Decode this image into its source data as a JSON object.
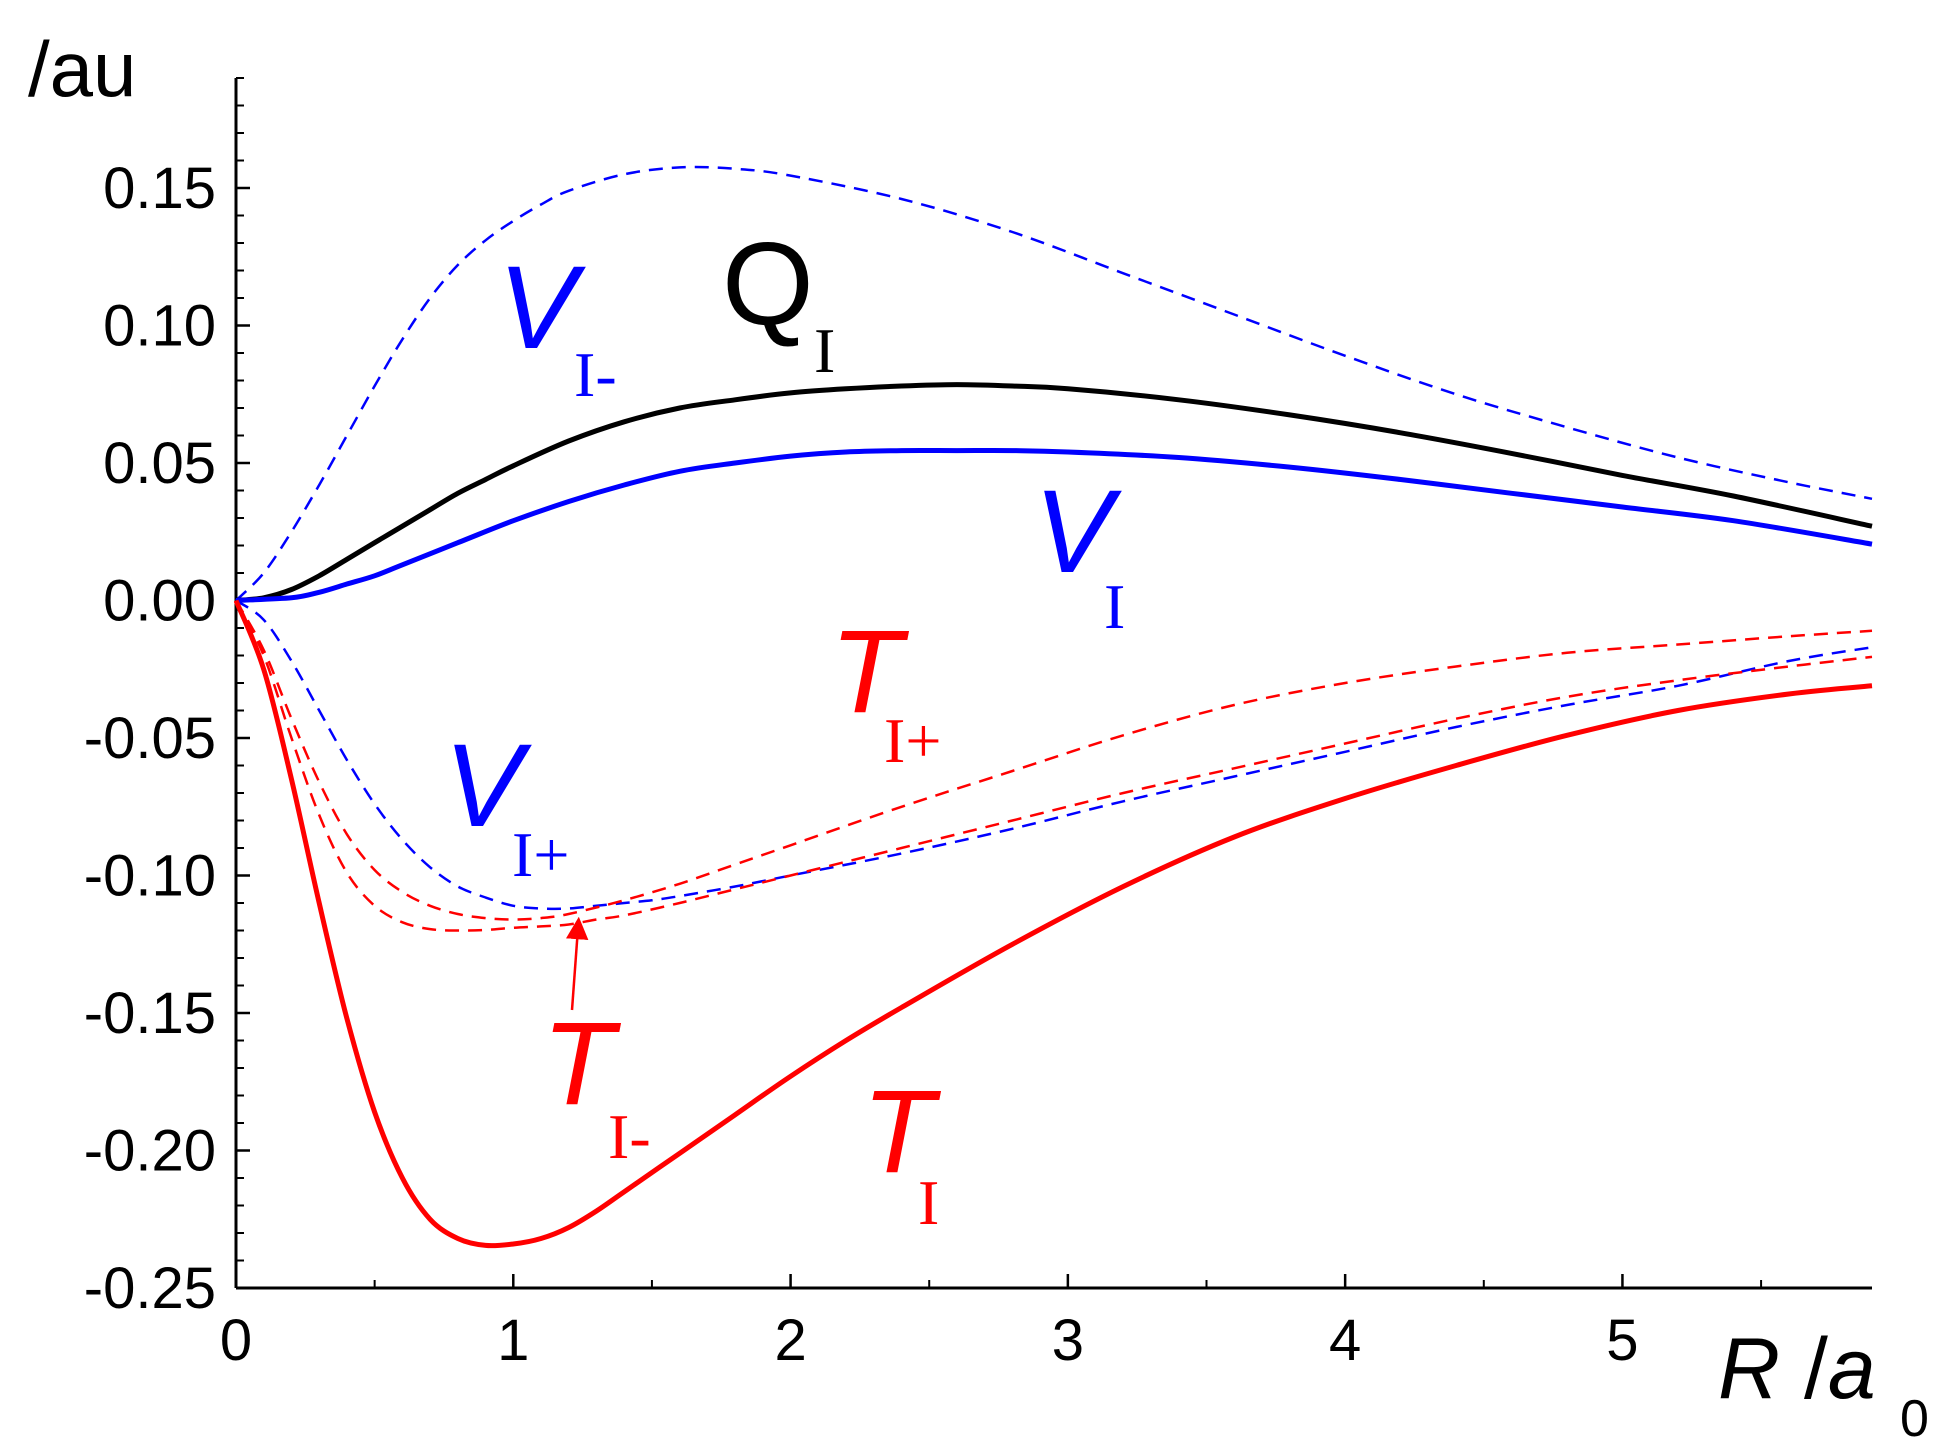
{
  "chart_data": {
    "type": "line",
    "ylabel": "/au",
    "xlabel_main": "R",
    "xlabel_sep": " /",
    "xlabel_var": "a",
    "xlabel_sub": "0",
    "xlim": [
      0,
      5.9
    ],
    "ylim": [
      -0.25,
      0.19
    ],
    "x_ticks": [
      0,
      1,
      2,
      3,
      4,
      5
    ],
    "x_tick_labels": [
      "0",
      "1",
      "2",
      "3",
      "4",
      "5"
    ],
    "y_ticks": [
      0.15,
      0.1,
      0.05,
      0.0,
      -0.05,
      -0.1,
      -0.15,
      -0.2,
      -0.25
    ],
    "y_tick_labels": [
      "0.15",
      "0.10",
      "0.05",
      "0.00",
      "-0.05",
      "-0.10",
      "-0.15",
      "-0.20",
      "-0.25"
    ],
    "grid": false,
    "series": [
      {
        "name": "Q",
        "name_sub": "I",
        "color": "#000000",
        "style": "solid",
        "x": [
          0,
          0.1,
          0.2,
          0.3,
          0.4,
          0.5,
          0.6,
          0.7,
          0.8,
          0.9,
          1.0,
          1.2,
          1.4,
          1.6,
          1.8,
          2.0,
          2.2,
          2.4,
          2.6,
          2.8,
          3.0,
          3.4,
          3.8,
          4.2,
          4.6,
          5.0,
          5.4,
          5.9
        ],
        "y": [
          0,
          0.001,
          0.004,
          0.009,
          0.015,
          0.021,
          0.027,
          0.033,
          0.039,
          0.044,
          0.049,
          0.058,
          0.065,
          0.07,
          0.073,
          0.0755,
          0.077,
          0.078,
          0.0785,
          0.078,
          0.077,
          0.073,
          0.0675,
          0.061,
          0.0535,
          0.0455,
          0.038,
          0.027
        ]
      },
      {
        "name": "V",
        "name_sub": "I",
        "color": "#0000ff",
        "style": "solid",
        "x": [
          0,
          0.2,
          0.3,
          0.4,
          0.5,
          0.6,
          0.8,
          1.0,
          1.2,
          1.4,
          1.6,
          1.8,
          2.0,
          2.2,
          2.4,
          2.6,
          2.8,
          3.0,
          3.4,
          3.8,
          4.2,
          4.6,
          5.0,
          5.4,
          5.9
        ],
        "y": [
          0,
          0.001,
          0.003,
          0.006,
          0.009,
          0.013,
          0.021,
          0.029,
          0.036,
          0.042,
          0.047,
          0.05,
          0.0525,
          0.054,
          0.0545,
          0.0545,
          0.0545,
          0.054,
          0.052,
          0.0485,
          0.044,
          0.039,
          0.034,
          0.029,
          0.0205
        ]
      },
      {
        "name": "V",
        "name_sub": "I-",
        "color": "#0000ff",
        "style": "dashed",
        "x": [
          0,
          0.1,
          0.2,
          0.3,
          0.4,
          0.5,
          0.6,
          0.7,
          0.8,
          0.9,
          1.0,
          1.1,
          1.2,
          1.4,
          1.6,
          1.8,
          2.0,
          2.4,
          2.8,
          3.2,
          3.6,
          4.0,
          4.4,
          4.8,
          5.2,
          5.6,
          5.9
        ],
        "y": [
          0,
          0.01,
          0.025,
          0.042,
          0.06,
          0.078,
          0.095,
          0.11,
          0.122,
          0.131,
          0.138,
          0.144,
          0.149,
          0.155,
          0.1575,
          0.157,
          0.1545,
          0.146,
          0.134,
          0.119,
          0.104,
          0.089,
          0.075,
          0.063,
          0.052,
          0.043,
          0.037
        ]
      },
      {
        "name": "V",
        "name_sub": "I+",
        "color": "#0000ff",
        "style": "dashed",
        "x": [
          0,
          0.1,
          0.2,
          0.3,
          0.4,
          0.5,
          0.6,
          0.7,
          0.8,
          0.9,
          1.0,
          1.1,
          1.2,
          1.3,
          1.4,
          1.5,
          1.6,
          1.8,
          2.0,
          2.4,
          2.8,
          3.2,
          3.6,
          4.0,
          4.4,
          4.8,
          5.2,
          5.6,
          5.9
        ],
        "y": [
          0,
          -0.007,
          -0.022,
          -0.04,
          -0.058,
          -0.074,
          -0.087,
          -0.097,
          -0.104,
          -0.108,
          -0.111,
          -0.112,
          -0.112,
          -0.111,
          -0.11,
          -0.109,
          -0.1075,
          -0.104,
          -0.1,
          -0.092,
          -0.083,
          -0.073,
          -0.064,
          -0.055,
          -0.046,
          -0.038,
          -0.031,
          -0.022,
          -0.017
        ]
      },
      {
        "name": "T",
        "name_sub": "I",
        "color": "#ff0000",
        "style": "solid",
        "x": [
          0,
          0.1,
          0.2,
          0.3,
          0.4,
          0.5,
          0.6,
          0.7,
          0.8,
          0.9,
          1.0,
          1.1,
          1.2,
          1.3,
          1.4,
          1.6,
          1.8,
          2.0,
          2.2,
          2.4,
          2.8,
          3.2,
          3.6,
          4.0,
          4.4,
          4.8,
          5.2,
          5.6,
          5.9
        ],
        "y": [
          0,
          -0.025,
          -0.065,
          -0.11,
          -0.152,
          -0.186,
          -0.21,
          -0.225,
          -0.232,
          -0.2345,
          -0.234,
          -0.232,
          -0.228,
          -0.222,
          -0.215,
          -0.201,
          -0.187,
          -0.173,
          -0.16,
          -0.148,
          -0.125,
          -0.104,
          -0.086,
          -0.072,
          -0.06,
          -0.049,
          -0.04,
          -0.034,
          -0.031
        ]
      },
      {
        "name": "T",
        "name_sub": "I+",
        "color": "#ff0000",
        "style": "dashed",
        "x": [
          0,
          0.1,
          0.2,
          0.3,
          0.4,
          0.5,
          0.6,
          0.7,
          0.8,
          0.9,
          1.0,
          1.1,
          1.2,
          1.4,
          1.6,
          1.8,
          2.0,
          2.4,
          2.8,
          3.2,
          3.6,
          4.0,
          4.4,
          4.8,
          5.2,
          5.6,
          5.9
        ],
        "y": [
          0,
          -0.018,
          -0.043,
          -0.066,
          -0.085,
          -0.098,
          -0.106,
          -0.111,
          -0.114,
          -0.1155,
          -0.116,
          -0.1155,
          -0.114,
          -0.109,
          -0.103,
          -0.096,
          -0.089,
          -0.075,
          -0.062,
          -0.049,
          -0.038,
          -0.03,
          -0.024,
          -0.019,
          -0.016,
          -0.013,
          -0.011
        ]
      },
      {
        "name": "T",
        "name_sub": "I-",
        "color": "#ff0000",
        "style": "dashed",
        "x": [
          0,
          0.1,
          0.2,
          0.3,
          0.4,
          0.5,
          0.6,
          0.7,
          0.8,
          0.9,
          1.0,
          1.1,
          1.2,
          1.3,
          1.4,
          1.6,
          1.8,
          2.0,
          2.4,
          2.8,
          3.2,
          3.6,
          4.0,
          4.4,
          4.8,
          5.2,
          5.6,
          5.9
        ],
        "y": [
          0,
          -0.02,
          -0.05,
          -0.078,
          -0.099,
          -0.111,
          -0.117,
          -0.1195,
          -0.12,
          -0.1198,
          -0.119,
          -0.1185,
          -0.1178,
          -0.116,
          -0.1145,
          -0.11,
          -0.105,
          -0.1,
          -0.09,
          -0.08,
          -0.07,
          -0.061,
          -0.052,
          -0.043,
          -0.035,
          -0.029,
          -0.024,
          -0.0205
        ]
      }
    ]
  }
}
